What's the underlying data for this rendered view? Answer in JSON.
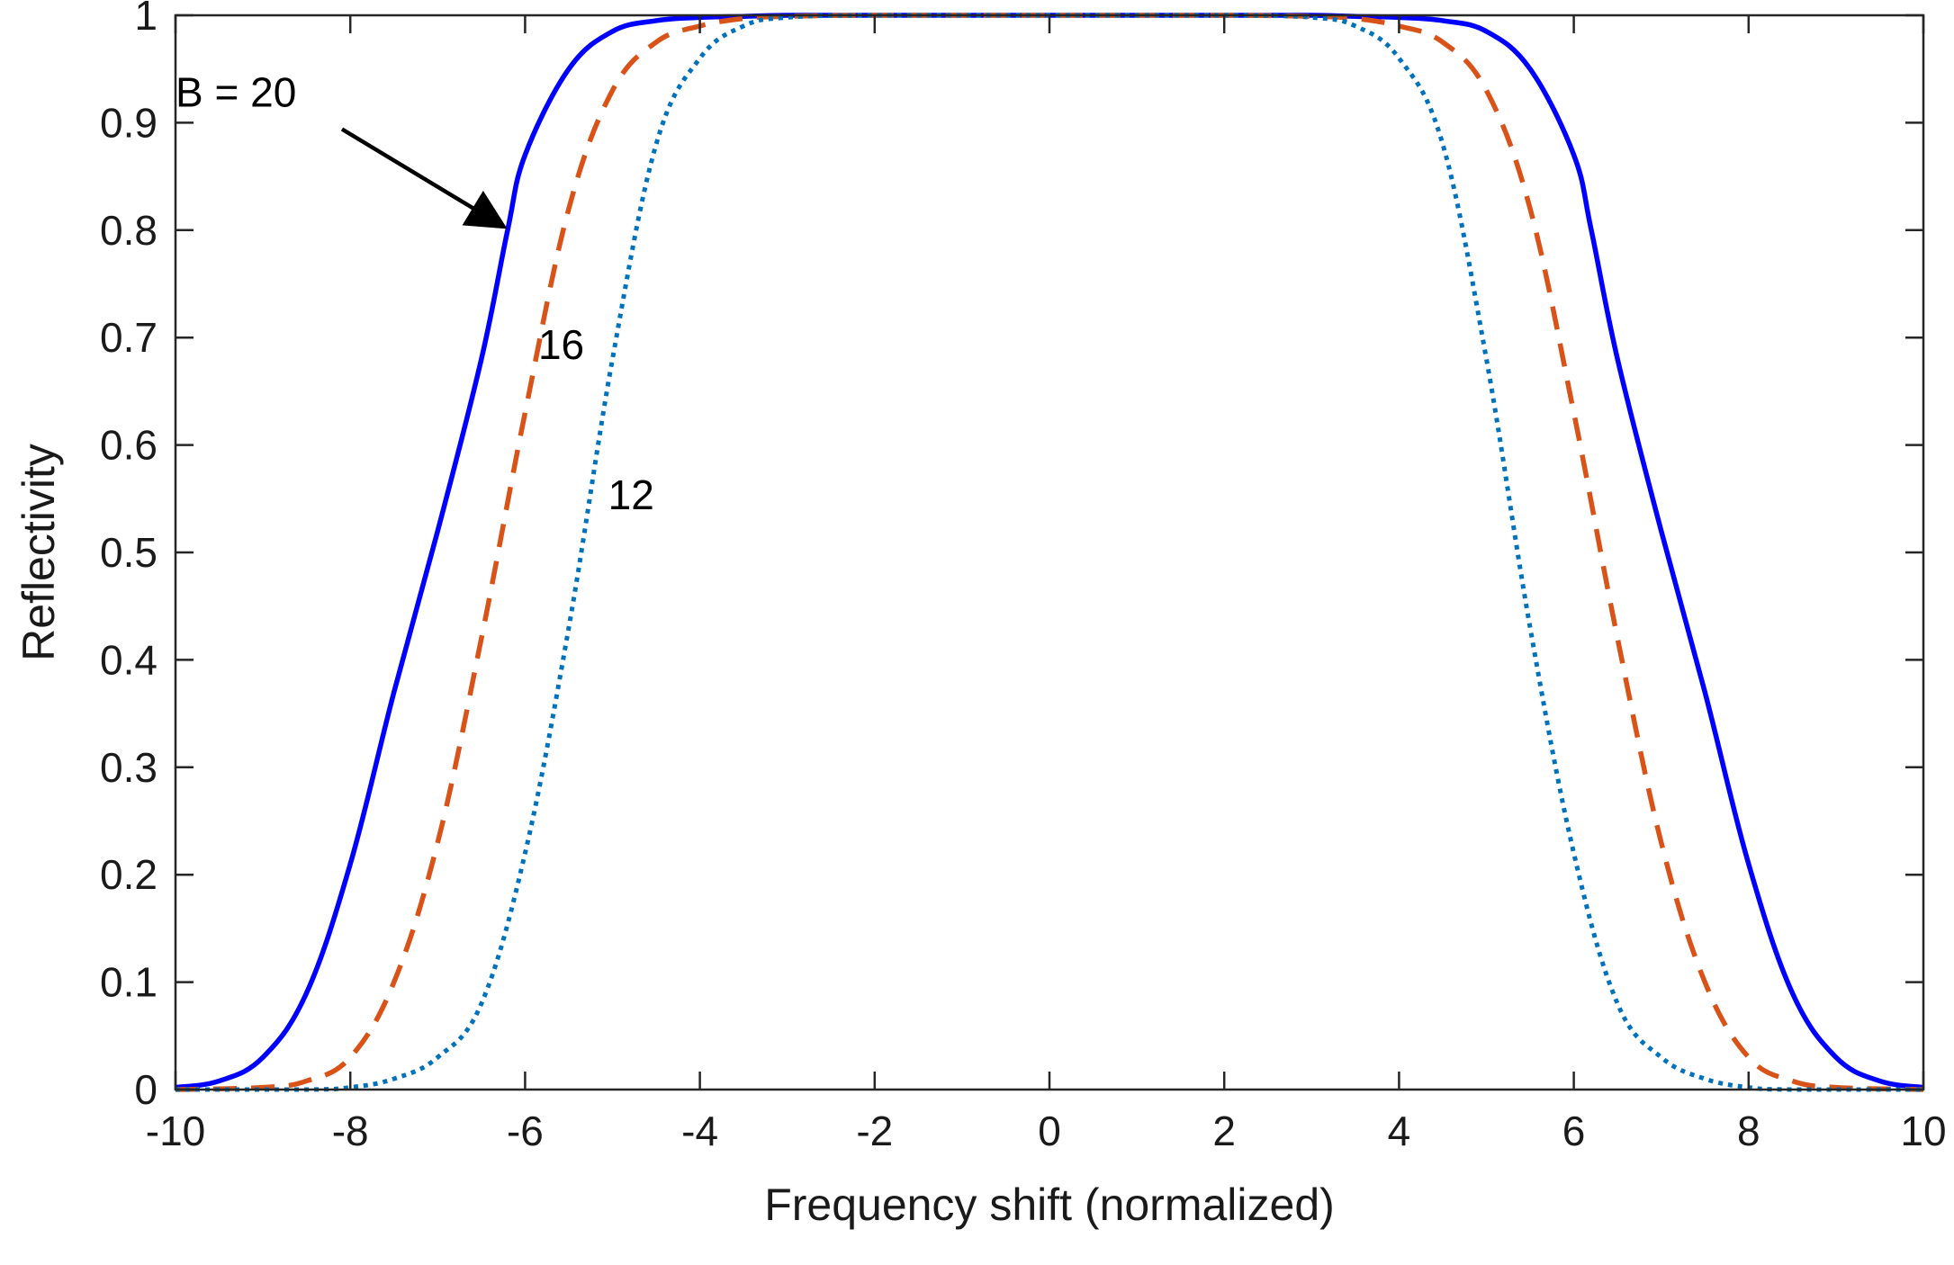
{
  "chart_data": {
    "type": "line",
    "title": "",
    "xlabel": "Frequency shift (normalized)",
    "ylabel": "Reflectivity",
    "xlim": [
      -10,
      10
    ],
    "ylim": [
      0,
      1
    ],
    "xticks": [
      -10,
      -8,
      -6,
      -4,
      -2,
      0,
      2,
      4,
      6,
      8,
      10
    ],
    "yticks": [
      0,
      0.1,
      0.2,
      0.3,
      0.4,
      0.5,
      0.6,
      0.7,
      0.8,
      0.9,
      1
    ],
    "grid": false,
    "legend": "none",
    "series": [
      {
        "name": "B = 20",
        "style": "solid",
        "color": "#0000ff",
        "x": [
          -10,
          -9.5,
          -9,
          -8.5,
          -8,
          -7.5,
          -7,
          -6.5,
          -6.2,
          -6,
          -5.5,
          -5,
          -4.5,
          -4,
          -3.5,
          -3,
          -2,
          0,
          2,
          3,
          3.5,
          4,
          4.5,
          5,
          5.5,
          6,
          6.2,
          6.5,
          7,
          7.5,
          8,
          8.5,
          9,
          9.5,
          10
        ],
        "y": [
          0.002,
          0.008,
          0.03,
          0.09,
          0.21,
          0.37,
          0.52,
          0.68,
          0.8,
          0.87,
          0.95,
          0.985,
          0.995,
          0.998,
          0.999,
          1.0,
          1.0,
          1.0,
          1.0,
          1.0,
          0.999,
          0.998,
          0.995,
          0.985,
          0.95,
          0.87,
          0.8,
          0.68,
          0.52,
          0.37,
          0.21,
          0.09,
          0.03,
          0.008,
          0.002
        ]
      },
      {
        "name": "16",
        "style": "dashed",
        "color": "#d95319",
        "x": [
          -10,
          -9,
          -8.5,
          -8,
          -7.5,
          -7,
          -6.5,
          -6,
          -5.5,
          -5,
          -4.5,
          -4,
          -3.5,
          -3,
          -2,
          0,
          2,
          3,
          3.5,
          4,
          4.5,
          5,
          5.5,
          6,
          6.5,
          7,
          7.5,
          8,
          8.5,
          9,
          10
        ],
        "y": [
          0.0,
          0.002,
          0.008,
          0.03,
          0.1,
          0.23,
          0.42,
          0.63,
          0.82,
          0.93,
          0.975,
          0.99,
          0.997,
          0.999,
          1.0,
          1.0,
          1.0,
          0.999,
          0.997,
          0.99,
          0.975,
          0.93,
          0.82,
          0.63,
          0.42,
          0.23,
          0.1,
          0.03,
          0.008,
          0.002,
          0.0
        ]
      },
      {
        "name": "12",
        "style": "dotted",
        "color": "#0072bd",
        "x": [
          -10,
          -8.5,
          -8,
          -7.5,
          -7,
          -6.5,
          -6,
          -5.5,
          -5,
          -4.5,
          -4,
          -3.5,
          -3,
          -2,
          0,
          2,
          3,
          3.5,
          4,
          4.5,
          5,
          5.5,
          6,
          6.5,
          7,
          7.5,
          8,
          8.5,
          10
        ],
        "y": [
          0.0,
          0.0,
          0.002,
          0.01,
          0.03,
          0.08,
          0.22,
          0.43,
          0.68,
          0.88,
          0.96,
          0.99,
          0.998,
          1.0,
          1.0,
          1.0,
          0.998,
          0.99,
          0.96,
          0.88,
          0.68,
          0.43,
          0.22,
          0.08,
          0.03,
          0.01,
          0.002,
          0.0,
          0.0
        ]
      }
    ],
    "annotations": [
      {
        "text": "B = 20",
        "x": -10.0,
        "y": 0.915,
        "arrow_to": {
          "x": -6.2,
          "y": 0.795
        }
      },
      {
        "text": "16",
        "x": -5.85,
        "y": 0.68
      },
      {
        "text": "12",
        "x": -5.05,
        "y": 0.54
      }
    ]
  }
}
